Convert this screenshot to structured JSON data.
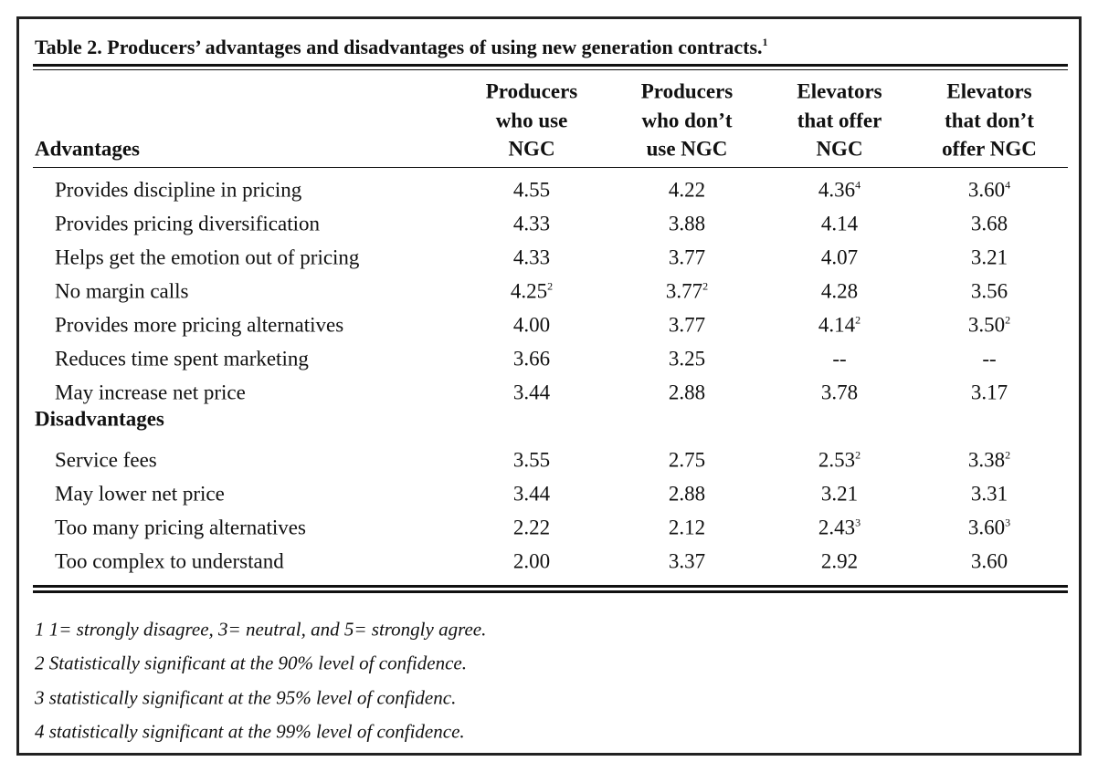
{
  "title": {
    "text": "Table 2. Producers’ advantages and disadvantages of using new generation contracts.",
    "note": "1"
  },
  "columns": [
    [
      "Producers",
      "who use",
      "NGC"
    ],
    [
      "Producers",
      "who don’t",
      "use NGC"
    ],
    [
      "Elevators",
      "that offer",
      "NGC"
    ],
    [
      "Elevators",
      "that don’t",
      "offer NGC"
    ]
  ],
  "sections": [
    {
      "heading": "Advantages",
      "rows": [
        {
          "label": "Provides discipline in pricing",
          "cells": [
            "4.55",
            "4.22",
            {
              "text": "4.36",
              "note": "4"
            },
            {
              "text": "3.60",
              "note": "4"
            }
          ]
        },
        {
          "label": "Provides pricing diversification",
          "cells": [
            "4.33",
            "3.88",
            "4.14",
            "3.68"
          ]
        },
        {
          "label": "Helps get the emotion out of pricing",
          "cells": [
            "4.33",
            "3.77",
            "4.07",
            "3.21"
          ]
        },
        {
          "label": "No margin calls",
          "cells": [
            {
              "text": "4.25",
              "note": "2"
            },
            {
              "text": "3.77",
              "note": "2"
            },
            "4.28",
            "3.56"
          ]
        },
        {
          "label": "Provides more pricing alternatives",
          "cells": [
            "4.00",
            "3.77",
            {
              "text": "4.14",
              "note": "2"
            },
            {
              "text": "3.50",
              "note": "2"
            }
          ]
        },
        {
          "label": "Reduces time spent marketing",
          "cells": [
            "3.66",
            "3.25",
            "--",
            "--"
          ]
        },
        {
          "label": "May increase net price",
          "cells": [
            "3.44",
            "2.88",
            "3.78",
            "3.17"
          ]
        }
      ]
    },
    {
      "heading": "Disadvantages",
      "rows": [
        {
          "label": "Service fees",
          "cells": [
            "3.55",
            "2.75",
            {
              "text": "2.53",
              "note": "2"
            },
            {
              "text": "3.38",
              "note": "2"
            }
          ]
        },
        {
          "label": "May lower net price",
          "cells": [
            "3.44",
            "2.88",
            "3.21",
            "3.31"
          ]
        },
        {
          "label": "Too many pricing alternatives",
          "cells": [
            "2.22",
            "2.12",
            {
              "text": "2.43",
              "note": "3"
            },
            {
              "text": "3.60",
              "note": "3"
            }
          ]
        },
        {
          "label": "Too complex to understand",
          "cells": [
            "2.00",
            "3.37",
            "2.92",
            "3.60"
          ]
        }
      ]
    }
  ],
  "footnotes": [
    "1 1= strongly disagree, 3= neutral, and 5= strongly agree.",
    "2 Statistically significant at the 90% level of confidence.",
    "3 statistically significant at the 95% level of confidenc.",
    "4 statistically significant at the 99% level of confidence."
  ]
}
